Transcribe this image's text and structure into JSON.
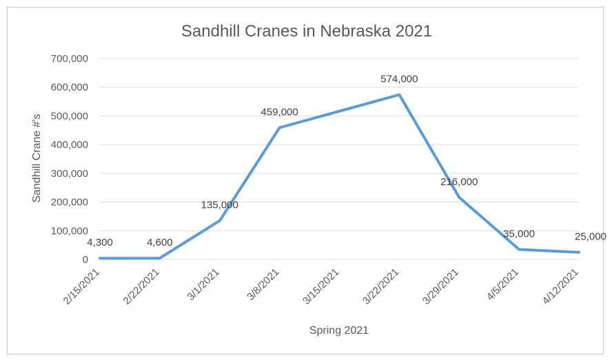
{
  "chart_data": {
    "type": "line",
    "title": "Sandhill Cranes in Nebraska 2021",
    "xlabel": "Spring 2021",
    "ylabel": "Sandhill Crane #'s",
    "categories": [
      "2/15/2021",
      "2/22/2021",
      "3/1/2021",
      "3/8/2021",
      "3/15/2021",
      "3/22/2021",
      "3/29/2021",
      "4/5/2021",
      "4/12/2021"
    ],
    "x": [
      "2/15/2021",
      "2/22/2021",
      "3/1/2021",
      "3/8/2021",
      "3/22/2021",
      "3/29/2021",
      "4/5/2021",
      "4/12/2021"
    ],
    "values": [
      4300,
      4600,
      135000,
      459000,
      574000,
      216000,
      35000,
      25000
    ],
    "data_labels": [
      "4,300",
      "4,600",
      "135,000",
      "459,000",
      "574,000",
      "216,000",
      "35,000",
      "25,000"
    ],
    "yticks": [
      "0",
      "100,000",
      "200,000",
      "300,000",
      "400,000",
      "500,000",
      "600,000",
      "700,000"
    ],
    "ylim": [
      0,
      700000
    ],
    "grid": true,
    "legend": "none",
    "line_color": "#5b9bd5"
  }
}
